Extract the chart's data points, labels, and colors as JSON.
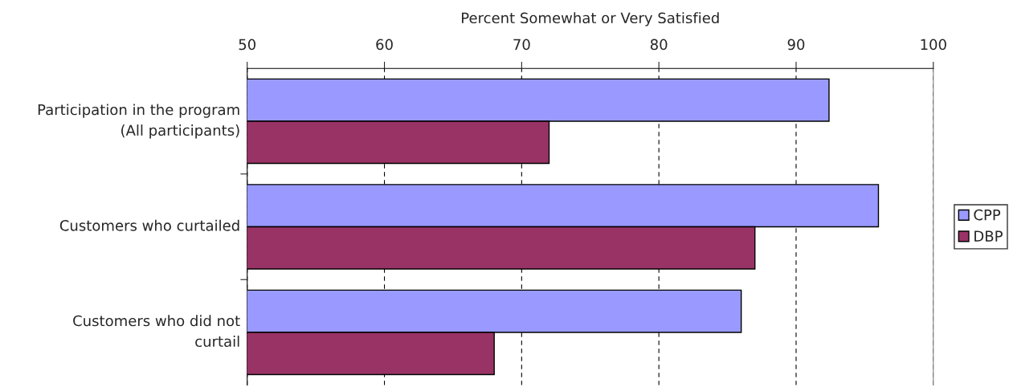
{
  "chart_data": {
    "type": "bar",
    "orientation": "horizontal",
    "xlabel": "Percent Somewhat or Very Satisfied",
    "categories": [
      "Participation in the program\n(All participants)",
      "Customers who curtailed",
      "Customers who did not\ncurtail"
    ],
    "series": [
      {
        "name": "CPP",
        "color": "#9999ff",
        "values": [
          92.4,
          96,
          86
        ]
      },
      {
        "name": "DBP",
        "color": "#993366",
        "values": [
          72,
          87,
          68
        ]
      }
    ],
    "xlim": [
      50,
      100
    ],
    "xticks": [
      50,
      60,
      70,
      80,
      90,
      100
    ],
    "grid": "x",
    "legend": "right"
  }
}
